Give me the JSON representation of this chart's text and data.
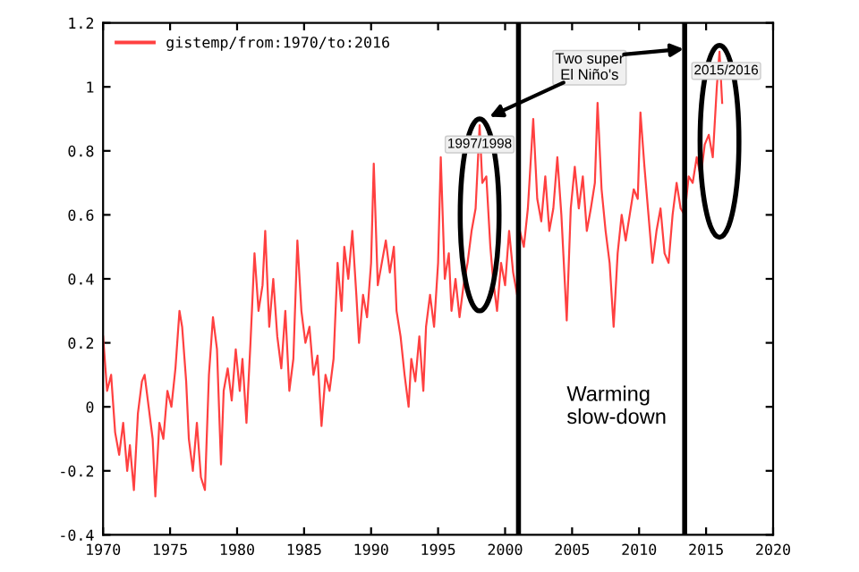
{
  "chart_data": {
    "type": "line",
    "x": [
      1970.0,
      1970.3,
      1970.6,
      1970.9,
      1971.2,
      1971.5,
      1971.8,
      1972.0,
      1972.3,
      1972.6,
      1972.9,
      1973.1,
      1973.4,
      1973.7,
      1973.9,
      1974.2,
      1974.5,
      1974.8,
      1975.1,
      1975.4,
      1975.7,
      1975.9,
      1976.2,
      1976.4,
      1976.7,
      1977.0,
      1977.3,
      1977.6,
      1977.9,
      1978.2,
      1978.5,
      1978.8,
      1979.0,
      1979.3,
      1979.6,
      1979.9,
      1980.2,
      1980.4,
      1980.7,
      1981.0,
      1981.3,
      1981.6,
      1981.9,
      1982.1,
      1982.4,
      1982.7,
      1983.0,
      1983.3,
      1983.6,
      1983.9,
      1984.2,
      1984.5,
      1984.8,
      1985.1,
      1985.4,
      1985.7,
      1986.0,
      1986.3,
      1986.6,
      1986.9,
      1987.2,
      1987.5,
      1987.8,
      1988.0,
      1988.3,
      1988.6,
      1988.9,
      1989.1,
      1989.4,
      1989.7,
      1990.0,
      1990.2,
      1990.5,
      1990.8,
      1991.1,
      1991.4,
      1991.7,
      1991.9,
      1992.2,
      1992.5,
      1992.8,
      1993.0,
      1993.3,
      1993.6,
      1993.9,
      1994.1,
      1994.4,
      1994.7,
      1995.0,
      1995.2,
      1995.5,
      1995.8,
      1996.0,
      1996.3,
      1996.6,
      1996.9,
      1997.2,
      1997.5,
      1997.8,
      1998.1,
      1998.3,
      1998.6,
      1998.9,
      1999.1,
      1999.4,
      1999.7,
      2000.0,
      2000.3,
      2000.6,
      2000.9,
      2001.1,
      2001.4,
      2001.7,
      2002.1,
      2002.4,
      2002.7,
      2003.0,
      2003.3,
      2003.6,
      2003.9,
      2004.2,
      2004.6,
      2004.9,
      2005.2,
      2005.5,
      2005.8,
      2006.1,
      2006.4,
      2006.7,
      2006.9,
      2007.2,
      2007.5,
      2007.8,
      2008.1,
      2008.4,
      2008.7,
      2009.0,
      2009.3,
      2009.6,
      2009.9,
      2010.1,
      2010.4,
      2010.7,
      2011.0,
      2011.3,
      2011.6,
      2011.9,
      2012.2,
      2012.5,
      2012.8,
      2013.1,
      2013.4,
      2013.7,
      2014.0,
      2014.3,
      2014.6,
      2014.9,
      2015.2,
      2015.5,
      2015.8,
      2016.0,
      2016.2
    ],
    "series": [
      {
        "name": "gistemp/from:1970/to:2016",
        "color": "#ff4040",
        "values": [
          0.22,
          0.05,
          0.1,
          -0.08,
          -0.15,
          -0.05,
          -0.2,
          -0.12,
          -0.26,
          -0.02,
          0.08,
          0.1,
          0.0,
          -0.1,
          -0.28,
          -0.05,
          -0.1,
          0.05,
          0.0,
          0.12,
          0.3,
          0.25,
          0.08,
          -0.1,
          -0.2,
          -0.05,
          -0.22,
          -0.26,
          0.1,
          0.28,
          0.18,
          -0.18,
          0.05,
          0.12,
          0.02,
          0.18,
          0.05,
          0.15,
          -0.05,
          0.2,
          0.48,
          0.3,
          0.38,
          0.55,
          0.25,
          0.4,
          0.22,
          0.12,
          0.3,
          0.05,
          0.15,
          0.52,
          0.3,
          0.2,
          0.25,
          0.1,
          0.16,
          -0.06,
          0.1,
          0.05,
          0.15,
          0.45,
          0.3,
          0.5,
          0.4,
          0.55,
          0.35,
          0.2,
          0.35,
          0.28,
          0.45,
          0.76,
          0.38,
          0.45,
          0.52,
          0.42,
          0.5,
          0.3,
          0.22,
          0.1,
          0.0,
          0.15,
          0.08,
          0.22,
          0.05,
          0.25,
          0.35,
          0.25,
          0.45,
          0.78,
          0.4,
          0.48,
          0.3,
          0.4,
          0.28,
          0.38,
          0.45,
          0.55,
          0.62,
          0.88,
          0.7,
          0.72,
          0.5,
          0.4,
          0.3,
          0.45,
          0.38,
          0.55,
          0.42,
          0.35,
          0.55,
          0.5,
          0.62,
          0.9,
          0.65,
          0.58,
          0.72,
          0.55,
          0.62,
          0.78,
          0.6,
          0.27,
          0.62,
          0.75,
          0.62,
          0.72,
          0.55,
          0.62,
          0.7,
          0.95,
          0.68,
          0.55,
          0.45,
          0.25,
          0.48,
          0.6,
          0.52,
          0.6,
          0.68,
          0.65,
          0.92,
          0.75,
          0.6,
          0.45,
          0.55,
          0.62,
          0.48,
          0.45,
          0.6,
          0.7,
          0.62,
          0.6,
          0.72,
          0.7,
          0.78,
          0.72,
          0.82,
          0.85,
          0.78,
          1.0,
          1.11,
          0.95
        ]
      }
    ],
    "xlim": [
      1970,
      2020
    ],
    "xticks": [
      1970,
      1975,
      1980,
      1985,
      1990,
      1995,
      2000,
      2005,
      2010,
      2015,
      2020
    ],
    "ylim": [
      -0.4,
      1.2
    ],
    "yticks": [
      {
        "value": -0.4,
        "label": "-0.4"
      },
      {
        "value": -0.2,
        "label": "-0.2"
      },
      0,
      0.2,
      0.4,
      0.6,
      0.8,
      1,
      1.2
    ],
    "ref_lines": [
      {
        "axis": "x",
        "value": 2001,
        "color": "#000000"
      },
      {
        "axis": "x",
        "value": 2013.4,
        "color": "#000000"
      }
    ],
    "annotations": [
      {
        "text": "1997/1998",
        "x": 1998.1,
        "y": 0.88
      },
      {
        "text": "2015/2016",
        "x": 2016.0,
        "y": 1.11
      },
      "Two super\nEl Niño's",
      "Warming\nslow-down"
    ],
    "legend": "top left",
    "grid": false,
    "marker": "none",
    "line_style": "solid"
  }
}
